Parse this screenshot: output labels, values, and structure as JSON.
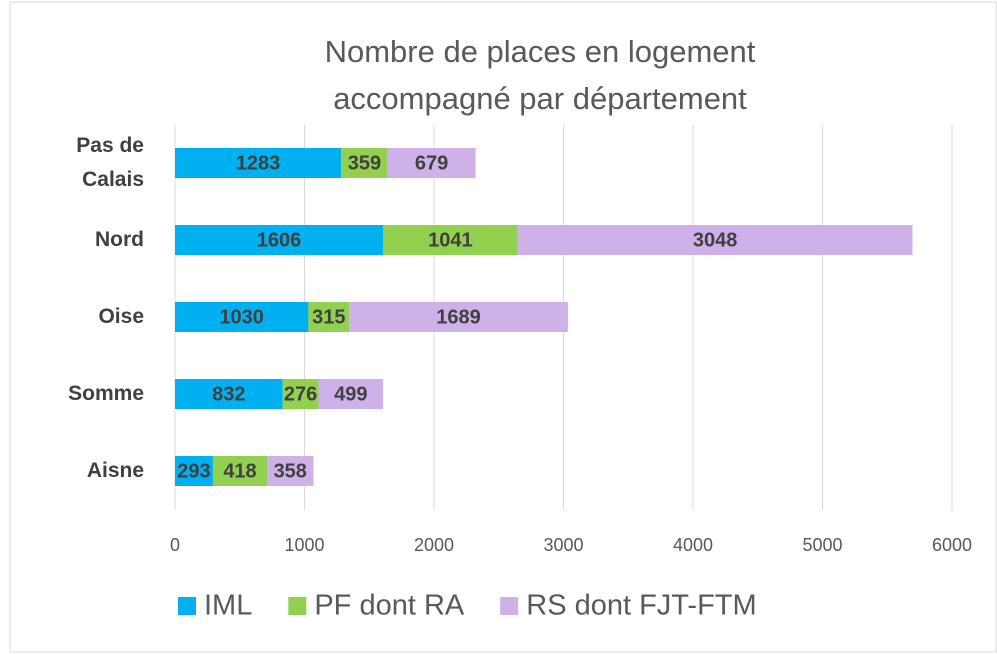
{
  "chart_data": {
    "type": "stacked_barh",
    "title": "Nombre de places en logement accompagné par département",
    "categories": [
      "Pas de Calais",
      "Nord",
      "Oise",
      "Somme",
      "Aisne"
    ],
    "series": [
      {
        "name": "IML",
        "color": "#00b0f0",
        "values": [
          1283,
          1606,
          1030,
          832,
          293
        ]
      },
      {
        "name": "PF dont RA",
        "color": "#92d050",
        "values": [
          359,
          1041,
          315,
          276,
          418
        ]
      },
      {
        "name": "RS dont FJT-FTM",
        "color": "#cdb1e8",
        "values": [
          679,
          3048,
          1689,
          499,
          358
        ]
      }
    ],
    "xlim": [
      0,
      6000
    ],
    "xticks": [
      0,
      1000,
      2000,
      3000,
      4000,
      5000,
      6000
    ],
    "grid": true,
    "legend": "bottom"
  }
}
